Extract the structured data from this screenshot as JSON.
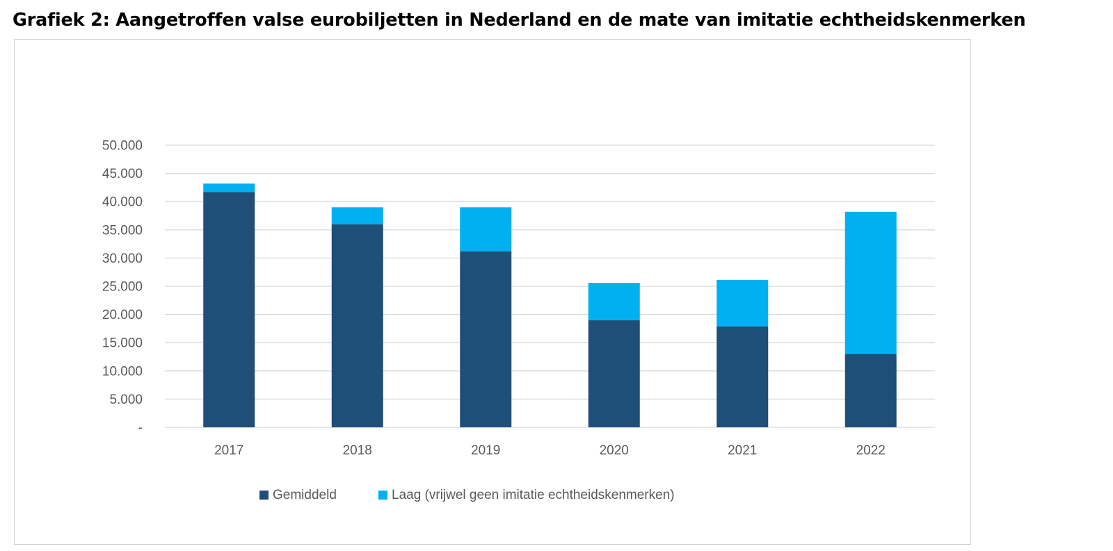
{
  "chart_data": {
    "type": "bar",
    "stacked": true,
    "title": "Grafiek 2: Aangetroffen valse eurobiljetten in Nederland en de mate van imitatie echtheidskenmerken",
    "categories": [
      "2017",
      "2018",
      "2019",
      "2020",
      "2021",
      "2022"
    ],
    "series": [
      {
        "name": "Gemiddeld",
        "color": "#1f4e79",
        "values": [
          41700,
          36000,
          31200,
          19000,
          17900,
          13000
        ]
      },
      {
        "name": "Laag (vrijwel geen imitatie echtheidskenmerken)",
        "color": "#00b0f0",
        "values": [
          1500,
          3000,
          7800,
          6600,
          8200,
          25200
        ]
      }
    ],
    "ylim": [
      0,
      50000
    ],
    "yticks": [
      0,
      5000,
      10000,
      15000,
      20000,
      25000,
      30000,
      35000,
      40000,
      45000,
      50000
    ],
    "ytick_labels": [
      "-",
      "5.000",
      "10.000",
      "15.000",
      "20.000",
      "25.000",
      "30.000",
      "35.000",
      "40.000",
      "45.000",
      "50.000"
    ],
    "grid": true,
    "legend_position": "bottom"
  }
}
